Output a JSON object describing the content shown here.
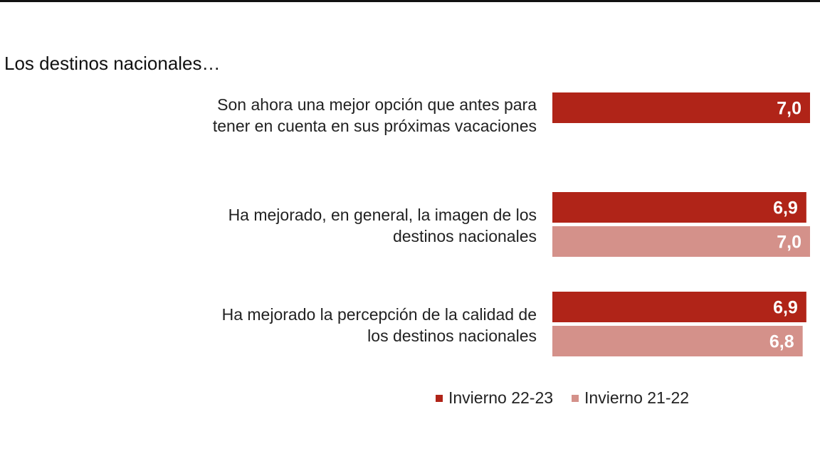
{
  "subtitle": "Los destinos nacionales…",
  "chart_data": {
    "type": "bar",
    "orientation": "horizontal",
    "categories": [
      "Son ahora una mejor opción que antes para tener en cuenta en sus próximas vacaciones",
      "Ha mejorado, en general, la imagen de los destinos nacionales",
      "Ha mejorado la percepción de la calidad de los destinos nacionales"
    ],
    "series": [
      {
        "name": "Invierno 22-23",
        "color": "#b02418",
        "values": [
          7.0,
          6.9,
          6.9
        ],
        "labels": [
          "7,0",
          "6,9",
          "6,9"
        ]
      },
      {
        "name": "Invierno 21-22",
        "color": "#d4918a",
        "values": [
          null,
          7.0,
          6.8
        ],
        "labels": [
          "",
          "7,0",
          "6,8"
        ]
      }
    ],
    "xlim": [
      0,
      7.0
    ],
    "legend_position": "bottom",
    "grid": false
  }
}
